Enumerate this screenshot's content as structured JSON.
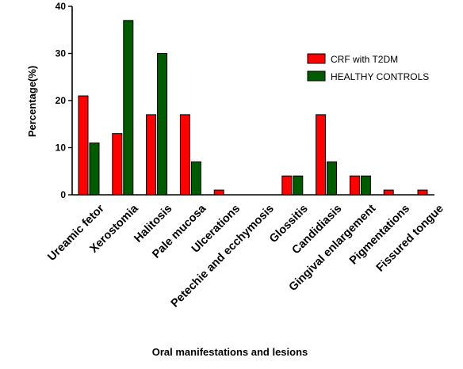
{
  "chart_data": {
    "type": "bar",
    "xlabel": "Oral manifestations and lesions",
    "ylabel": "Percentage(%)",
    "ylim": [
      0,
      40
    ],
    "yticks": [
      0,
      10,
      20,
      30,
      40
    ],
    "categories": [
      "Ureamic fetor",
      "Xerostomia",
      "Halitosis",
      "Pale mucosa",
      "Ulcerations",
      "Petechie and ecchymosis",
      "Glossitis",
      "Candidiasis",
      "Gingival enlargement",
      "Pigmentations",
      "Fissured tongue"
    ],
    "series": [
      {
        "name": "CRF with T2DM",
        "color": "#ff0000",
        "values": [
          21,
          13,
          17,
          17,
          1,
          0,
          4,
          17,
          4,
          1,
          1
        ]
      },
      {
        "name": "HEALTHY CONTROLS",
        "color": "#005a00",
        "values": [
          11,
          37,
          30,
          7,
          0,
          0,
          4,
          7,
          4,
          0,
          0
        ]
      }
    ],
    "legend_position": "right",
    "grid": false
  }
}
